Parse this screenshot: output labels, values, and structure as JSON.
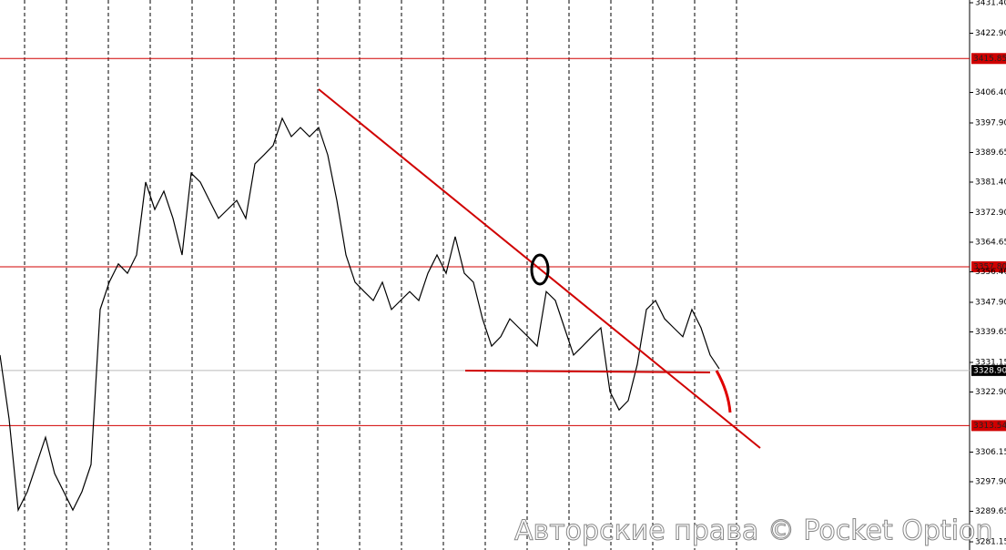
{
  "chart_data": {
    "type": "line",
    "color": "#000000",
    "values": [
      3333.2,
      3315.4,
      3290.0,
      3295.1,
      3302.7,
      3310.3,
      3300.2,
      3295.1,
      3290.0,
      3295.1,
      3302.7,
      3345.9,
      3353.5,
      3358.6,
      3356.0,
      3361.1,
      3381.4,
      3373.8,
      3378.9,
      3371.3,
      3361.1,
      3383.9,
      3381.4,
      3376.3,
      3371.3,
      3373.8,
      3376.3,
      3371.3,
      3386.5,
      3389.0,
      3391.6,
      3399.2,
      3394.1,
      3396.6,
      3394.1,
      3396.6,
      3389.0,
      3376.3,
      3361.1,
      3353.5,
      3350.9,
      3348.4,
      3353.5,
      3345.9,
      3348.4,
      3350.9,
      3348.4,
      3356.0,
      3361.1,
      3356.0,
      3366.2,
      3356.0,
      3353.5,
      3343.3,
      3335.7,
      3338.3,
      3343.3,
      3340.8,
      3338.3,
      3335.7,
      3350.9,
      3348.4,
      3340.8,
      3333.2,
      3335.7,
      3338.3,
      3340.8,
      3323.0,
      3317.9,
      3320.5,
      3330.6,
      3345.9,
      3348.4,
      3343.3,
      3340.8,
      3338.3,
      3345.9,
      3340.8,
      3333.2,
      3329.4
    ],
    "ylim": [
      3278.87,
      3432.16
    ],
    "yticks": [
      {
        "value": 3431.4,
        "label": "3431.40"
      },
      {
        "value": 3422.9,
        "label": "3422.90"
      },
      {
        "value": 3406.4,
        "label": "3406.40"
      },
      {
        "value": 3397.9,
        "label": "3397.90"
      },
      3389.65,
      {
        "value": 3381.4,
        "label": "3381.40"
      },
      {
        "value": 3372.9,
        "label": "3372.90"
      },
      3364.65,
      {
        "value": 3356.4,
        "label": "3356.40"
      },
      {
        "value": 3347.9,
        "label": "3347.90"
      },
      3339.65,
      3331.15,
      {
        "value": 3322.9,
        "label": "3322.90"
      },
      3306.15,
      {
        "value": 3297.9,
        "label": "3297.90"
      },
      3289.65,
      3281.15
    ],
    "levels": [
      {
        "value": 3415.85,
        "color": "#d00000"
      },
      {
        "value": {
          "value": 3357.8,
          "label": "3357.80"
        },
        "color": "#d00000"
      },
      {
        "value": 3313.54,
        "color": "#d00000"
      },
      {
        "value": {
          "value": 3328.9,
          "label": "3328.90"
        },
        "color": "#000000"
      }
    ],
    "watermark": "Авторские права © Pocket Option"
  }
}
